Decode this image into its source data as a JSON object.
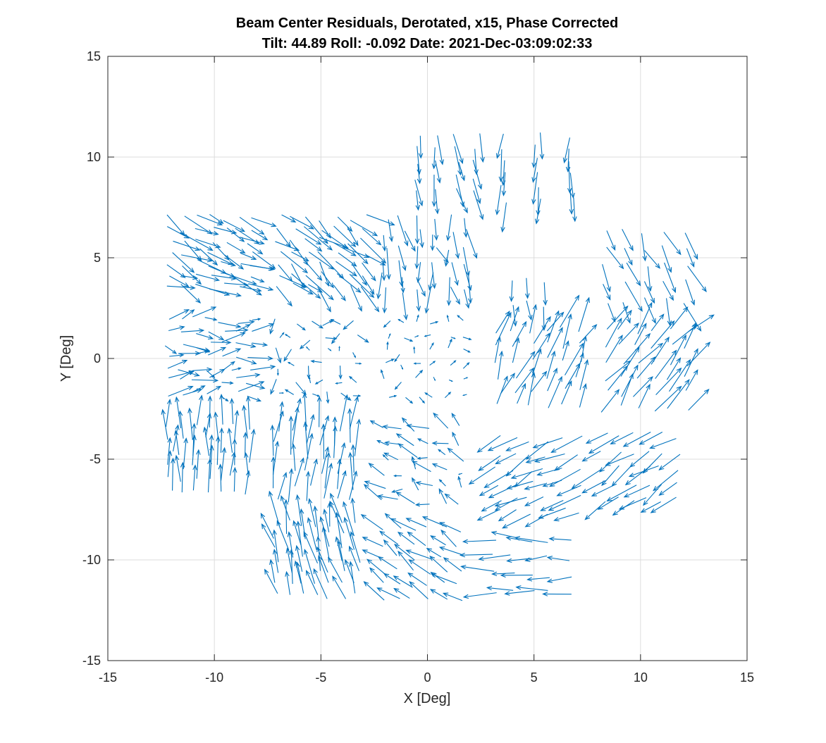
{
  "chart_data": {
    "type": "quiver",
    "title": "Beam Center Residuals, Derotated, x15, Phase Corrected",
    "subtitle": "Tilt: 44.89  Roll: -0.092  Date: 2021-Dec-03:09:02:33",
    "xlabel": "X [Deg]",
    "ylabel": "Y [Deg]",
    "xlim": [
      -15,
      15
    ],
    "ylim": [
      -15,
      15
    ],
    "xticks": [
      -15,
      -10,
      -5,
      0,
      5,
      10,
      15
    ],
    "yticks": [
      -15,
      -10,
      -5,
      0,
      5,
      10,
      15
    ],
    "xtick_labels": [
      "-15",
      "-10",
      "-5",
      "0",
      "5",
      "10",
      "15"
    ],
    "ytick_labels": [
      "-15",
      "-10",
      "-5",
      "0",
      "5",
      "10",
      "15"
    ],
    "grid": true,
    "color": "#0072bd",
    "scale_factor": 15,
    "clusters": [
      {
        "cx": -10.2,
        "cy": 5.3,
        "w": 3.8,
        "h": 3.4,
        "nx": 7,
        "ny": 7,
        "u": 1.1,
        "v": -0.55,
        "spread": 0.5
      },
      {
        "cx": -5.0,
        "cy": 5.3,
        "w": 4.0,
        "h": 3.4,
        "nx": 7,
        "ny": 7,
        "u": 0.9,
        "v": -0.85,
        "spread": 0.5
      },
      {
        "cx": -0.1,
        "cy": 5.2,
        "w": 3.8,
        "h": 3.6,
        "nx": 6,
        "ny": 6,
        "u": 0.15,
        "v": -1.15,
        "spread": 0.45
      },
      {
        "cx": 0.9,
        "cy": 9.7,
        "w": 2.8,
        "h": 2.8,
        "nx": 4,
        "ny": 5,
        "u": 0.2,
        "v": -1.25,
        "spread": 0.35
      },
      {
        "cx": 5.2,
        "cy": 9.5,
        "w": 3.2,
        "h": 3.2,
        "nx": 3,
        "ny": 6,
        "u": -0.05,
        "v": -1.35,
        "spread": 0.25
      },
      {
        "cx": 4.8,
        "cy": 3.3,
        "w": 1.4,
        "h": 1.2,
        "nx": 3,
        "ny": 2,
        "u": 0.1,
        "v": -1.0,
        "spread": 0.2
      },
      {
        "cx": 10.2,
        "cy": 4.6,
        "w": 3.8,
        "h": 3.4,
        "nx": 5,
        "ny": 5,
        "u": 0.5,
        "v": -1.1,
        "spread": 0.4
      },
      {
        "cx": -10.3,
        "cy": 0.1,
        "w": 3.8,
        "h": 3.6,
        "nx": 7,
        "ny": 7,
        "u": 0.8,
        "v": 0.05,
        "spread": 0.45
      },
      {
        "cx": -5.2,
        "cy": 0.0,
        "w": 3.6,
        "h": 3.6,
        "nx": 6,
        "ny": 6,
        "u": 0.05,
        "v": -0.2,
        "spread": 0.55
      },
      {
        "cx": -0.1,
        "cy": 0.0,
        "w": 3.6,
        "h": 3.6,
        "nx": 6,
        "ny": 6,
        "u": 0.05,
        "v": 0.05,
        "spread": 0.4
      },
      {
        "cx": 5.2,
        "cy": -0.5,
        "w": 3.8,
        "h": 3.8,
        "nx": 6,
        "ny": 6,
        "u": 0.55,
        "v": 1.3,
        "spread": 0.4
      },
      {
        "cx": 10.2,
        "cy": -0.6,
        "w": 3.8,
        "h": 3.8,
        "nx": 6,
        "ny": 6,
        "u": 0.9,
        "v": 1.2,
        "spread": 0.4
      },
      {
        "cx": -10.3,
        "cy": -5.0,
        "w": 3.6,
        "h": 3.2,
        "nx": 7,
        "ny": 6,
        "u": 0.0,
        "v": 1.4,
        "spread": 0.25
      },
      {
        "cx": -5.3,
        "cy": -5.3,
        "w": 3.6,
        "h": 3.6,
        "nx": 6,
        "ny": 6,
        "u": 0.15,
        "v": 1.6,
        "spread": 0.3
      },
      {
        "cx": -0.2,
        "cy": -5.3,
        "w": 3.6,
        "h": 3.6,
        "nx": 6,
        "ny": 6,
        "u": -0.6,
        "v": 0.35,
        "spread": 0.5
      },
      {
        "cx": 5.2,
        "cy": -5.8,
        "w": 3.8,
        "h": 3.6,
        "nx": 6,
        "ny": 6,
        "u": -1.15,
        "v": -0.6,
        "spread": 0.35
      },
      {
        "cx": 10.0,
        "cy": -5.4,
        "w": 3.4,
        "h": 3.2,
        "nx": 6,
        "ny": 5,
        "u": -1.1,
        "v": -0.75,
        "spread": 0.3
      },
      {
        "cx": -5.2,
        "cy": -10.0,
        "w": 3.8,
        "h": 3.6,
        "nx": 7,
        "ny": 7,
        "u": -0.35,
        "v": 1.45,
        "spread": 0.35
      },
      {
        "cx": -0.3,
        "cy": -10.2,
        "w": 3.6,
        "h": 3.4,
        "nx": 6,
        "ny": 6,
        "u": -0.9,
        "v": 0.65,
        "spread": 0.3
      },
      {
        "cx": 4.9,
        "cy": -10.3,
        "w": 3.4,
        "h": 2.6,
        "nx": 5,
        "ny": 4,
        "u": -1.25,
        "v": 0.0,
        "spread": 0.3
      }
    ]
  }
}
